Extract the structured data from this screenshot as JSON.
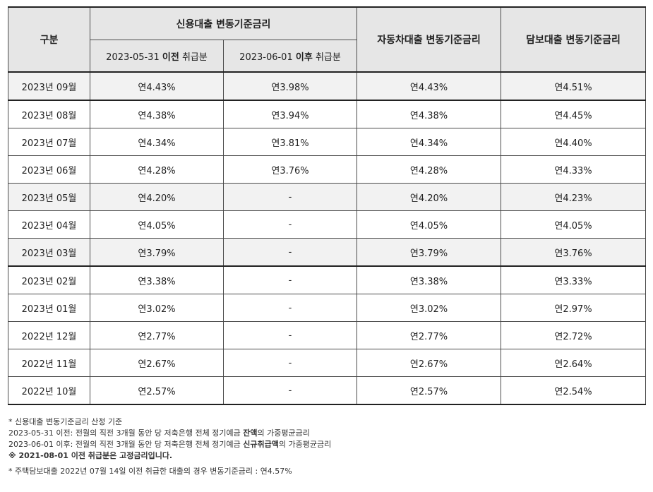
{
  "table": {
    "header": {
      "category": "구분",
      "credit_group": "신용대출 변동기준금리",
      "credit_before": {
        "date": "2023-05-31",
        "emph": "이전",
        "suffix": "취급분"
      },
      "credit_after": {
        "date": "2023-06-01",
        "emph": "이후",
        "suffix": "취급분"
      },
      "auto": "자동차대출 변동기준금리",
      "mortgage": "담보대출 변동기준금리"
    },
    "rows": [
      {
        "month": "2023년 09월",
        "credit_before": "연4.43%",
        "credit_after": "연3.98%",
        "auto": "연4.43%",
        "mortgage": "연4.51%"
      },
      {
        "month": "2023년 08월",
        "credit_before": "연4.38%",
        "credit_after": "연3.94%",
        "auto": "연4.38%",
        "mortgage": "연4.45%"
      },
      {
        "month": "2023년 07월",
        "credit_before": "연4.34%",
        "credit_after": "연3.81%",
        "auto": "연4.34%",
        "mortgage": "연4.40%"
      },
      {
        "month": "2023년 06월",
        "credit_before": "연4.28%",
        "credit_after": "연3.76%",
        "auto": "연4.28%",
        "mortgage": "연4.33%"
      },
      {
        "month": "2023년 05월",
        "credit_before": "연4.20%",
        "credit_after": "-",
        "auto": "연4.20%",
        "mortgage": "연4.23%"
      },
      {
        "month": "2023년 04월",
        "credit_before": "연4.05%",
        "credit_after": "-",
        "auto": "연4.05%",
        "mortgage": "연4.05%"
      },
      {
        "month": "2023년 03월",
        "credit_before": "연3.79%",
        "credit_after": "-",
        "auto": "연3.79%",
        "mortgage": "연3.76%"
      },
      {
        "month": "2023년 02월",
        "credit_before": "연3.38%",
        "credit_after": "-",
        "auto": "연3.38%",
        "mortgage": "연3.33%"
      },
      {
        "month": "2023년 01월",
        "credit_before": "연3.02%",
        "credit_after": "-",
        "auto": "연3.02%",
        "mortgage": "연2.97%"
      },
      {
        "month": "2022년 12월",
        "credit_before": "연2.77%",
        "credit_after": "-",
        "auto": "연2.77%",
        "mortgage": "연2.72%"
      },
      {
        "month": "2022년 11월",
        "credit_before": "연2.67%",
        "credit_after": "-",
        "auto": "연2.67%",
        "mortgage": "연2.64%"
      },
      {
        "month": "2022년 10월",
        "credit_before": "연2.57%",
        "credit_after": "-",
        "auto": "연2.57%",
        "mortgage": "연2.54%"
      }
    ]
  },
  "notes": {
    "basis_title": "* 신용대출 변동기준금리 산정 기준",
    "before_line": {
      "prefix": "2023-05-31 이전: 전월의 직전 3개월 동안 당 저축은행 전체 정기예금 ",
      "emph": "잔액",
      "suffix": "의 가중평균금리"
    },
    "after_line": {
      "prefix": "2023-06-01 이후: 전월의 직전 3개월 동안 당 저축은행 전체 정기예금 ",
      "emph": "신규취급액",
      "suffix": "의 가중평균금리"
    },
    "fixed_note": "※ 2021-08-01 이전 취급분은 고정금리입니다.",
    "mortgage_note": "* 주택담보대출 2022년 07월 14일 이전 취급한 대출의 경우 변동기준금리 : 연4.57%"
  }
}
